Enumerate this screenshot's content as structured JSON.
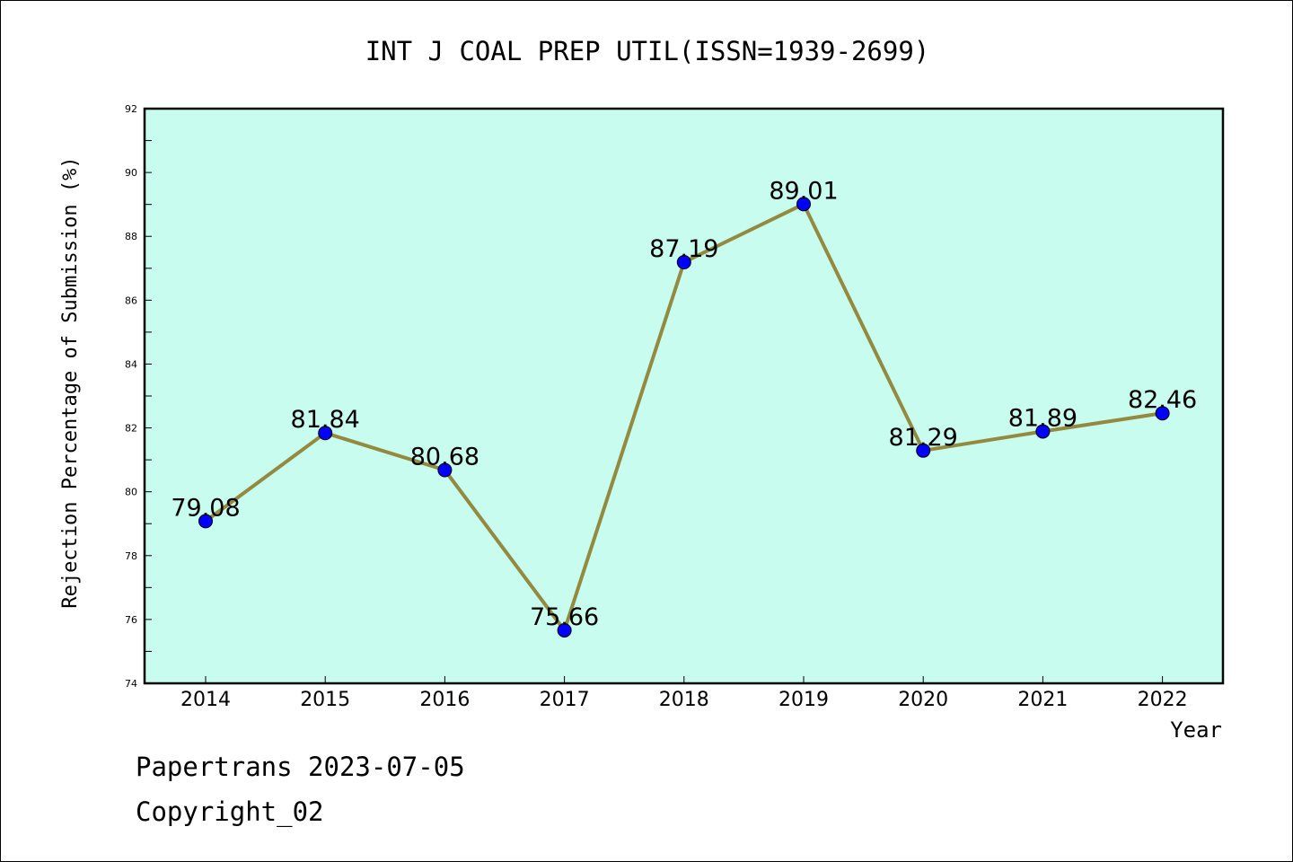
{
  "chart_data": {
    "type": "line",
    "title": "INT J COAL PREP UTIL(ISSN=1939-2699)",
    "xlabel": "Year",
    "ylabel": "Rejection Percentage of Submission (%)",
    "categories": [
      "2014",
      "2015",
      "2016",
      "2017",
      "2018",
      "2019",
      "2020",
      "2021",
      "2022"
    ],
    "values": [
      79.08,
      81.84,
      80.68,
      75.66,
      87.19,
      89.01,
      81.29,
      81.89,
      82.46
    ],
    "data_labels": [
      "79.08",
      "81.84",
      "80.68",
      "75.66",
      "87.19",
      "89.01",
      "81.29",
      "81.89",
      "82.46"
    ],
    "ylim": [
      74,
      92
    ],
    "yticks": [
      74,
      76,
      78,
      80,
      82,
      84,
      86,
      88,
      90,
      92
    ],
    "grid": false,
    "legend": "none",
    "colors": {
      "plot_background": "#c8fcee",
      "line": "#938a3f",
      "marker": "#0000ff",
      "axis": "#000000"
    }
  },
  "footer": {
    "line1": "Papertrans 2023-07-05",
    "line2": "Copyright_02"
  }
}
